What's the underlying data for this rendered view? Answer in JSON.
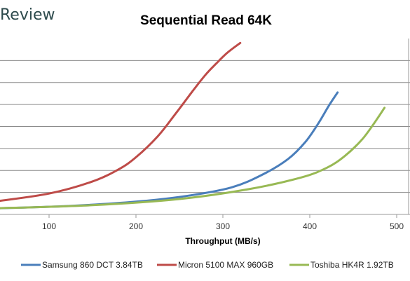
{
  "brand": {
    "name": "Review"
  },
  "chart_data": {
    "type": "line",
    "title": "Sequential Read 64K",
    "xlabel": "Throughput (MB/s)",
    "ylabel": "",
    "xlim": [
      40,
      500
    ],
    "ylim": [
      0,
      8
    ],
    "x_ticks": [
      100,
      200,
      300,
      400,
      500
    ],
    "y_gridlines": [
      1,
      2,
      3,
      4,
      5,
      6,
      7
    ],
    "y_tick_labels_visible": false,
    "grid": true,
    "legend_position": "bottom",
    "series": [
      {
        "name": "Samsung 860 DCT 3.84TB",
        "color": "#4a7ebb",
        "x": [
          40,
          120,
          200,
          260,
          310,
          345,
          375,
          395,
          410,
          422,
          432
        ],
        "y": [
          0.28,
          0.38,
          0.58,
          0.85,
          1.23,
          1.8,
          2.52,
          3.3,
          4.15,
          4.95,
          5.55
        ]
      },
      {
        "name": "Micron 5100 MAX 960GB",
        "color": "#be4b48",
        "x": [
          40,
          100,
          150,
          180,
          200,
          225,
          245,
          265,
          280,
          292,
          305,
          320
        ],
        "y": [
          0.6,
          0.95,
          1.5,
          2.05,
          2.6,
          3.55,
          4.55,
          5.6,
          6.35,
          6.85,
          7.35,
          7.8
        ]
      },
      {
        "name": "Toshiba HK4R 1.92TB",
        "color": "#98b954",
        "x": [
          40,
          150,
          250,
          330,
          390,
          420,
          440,
          460,
          475,
          486
        ],
        "y": [
          0.28,
          0.42,
          0.7,
          1.15,
          1.68,
          2.13,
          2.65,
          3.4,
          4.2,
          4.85
        ]
      }
    ]
  }
}
